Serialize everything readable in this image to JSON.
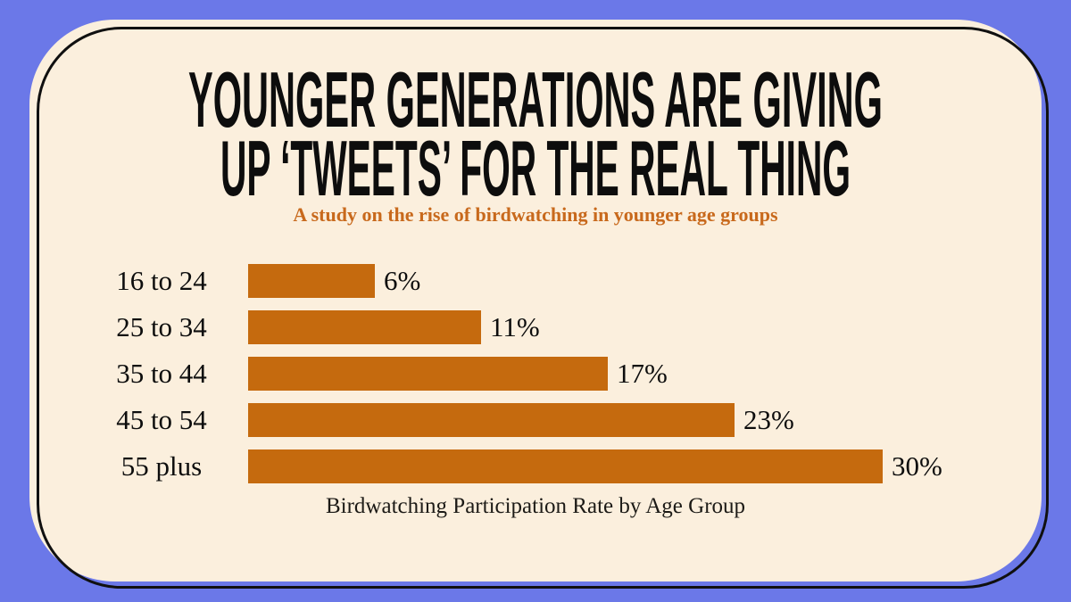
{
  "page": {
    "background_color": "#6B78E8",
    "card_color": "#FBEFDD",
    "outline_color": "#101010"
  },
  "header": {
    "title_line1": "YOUNGER GENERATIONS ARE GIVING",
    "title_line2": "UP ‘TWEETS’ FOR THE REAL THING",
    "subtitle": "A study on the rise of birdwatching in younger age groups",
    "subtitle_color": "#C8691C"
  },
  "chart_data": {
    "type": "bar",
    "orientation": "horizontal",
    "title": "Birdwatching Participation Rate by Age Group",
    "categories": [
      "16 to 24",
      "25 to 34",
      "35 to 44",
      "45 to 54",
      "55 plus"
    ],
    "values": [
      6,
      11,
      17,
      23,
      30
    ],
    "value_labels": [
      "6%",
      "11%",
      "17%",
      "23%",
      "30%"
    ],
    "xlim": [
      0,
      30
    ],
    "bar_color": "#C56A0E",
    "grid": false,
    "legend": false,
    "caption": "Birdwatching Participation Rate by Age Group"
  }
}
